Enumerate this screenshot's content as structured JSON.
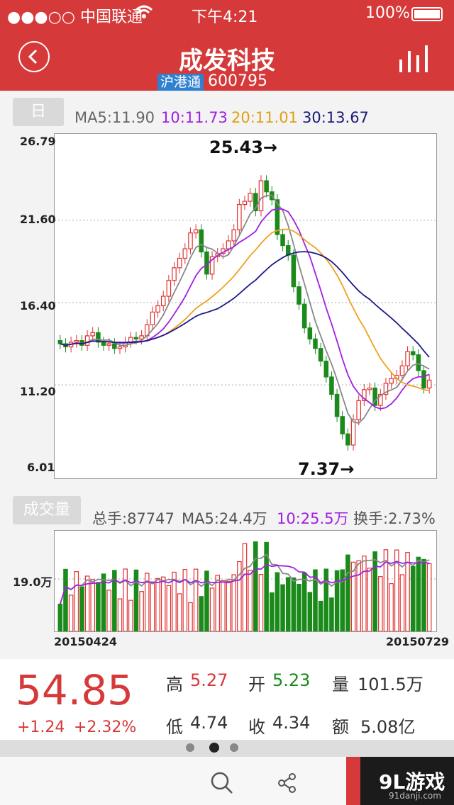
{
  "status_bar": {
    "carrier": "●●●○○ 中国联通",
    "time": "下午4:21",
    "battery": "100%"
  },
  "header": {
    "title": "成发科技",
    "market_tag": "沪港通",
    "code": "600795"
  },
  "kline": {
    "tab": "日",
    "ma": {
      "ma5": "MA5:11.90",
      "ma10": "10:11.73",
      "ma20": "20:11.01",
      "ma30": "30:13.67"
    },
    "y_labels": [
      "26.79",
      "21.60",
      "16.40",
      "11.20",
      "6.01"
    ],
    "high_label": "25.43→",
    "low_label": "7.37→",
    "colors": {
      "up": "#e03131",
      "down": "#1a8a1a",
      "ma5": "#888888",
      "ma10": "#a020e0",
      "ma20": "#f0a020",
      "ma30": "#1a1a8a"
    }
  },
  "volume": {
    "tab": "成交量",
    "total": "总手:87747",
    "ma5": "MA5:24.4万",
    "ma10": "10:25.5万",
    "turnover": "换手:2.73%",
    "y_label": "19.0万",
    "start_date": "20150424",
    "end_date": "20150729"
  },
  "quote": {
    "price": "54.85",
    "change": "+1.24",
    "change_pct": "+2.32%",
    "high_label": "高",
    "high": "5.27",
    "open_label": "开",
    "open": "5.23",
    "volume_label": "量",
    "volume": "101.5万",
    "low_label": "低",
    "low": "4.74",
    "close_label": "收",
    "close": "4.34",
    "amount_label": "额",
    "amount": "5.08亿"
  },
  "watermark": {
    "brand": "9L游戏",
    "site": "91danji.com"
  }
}
